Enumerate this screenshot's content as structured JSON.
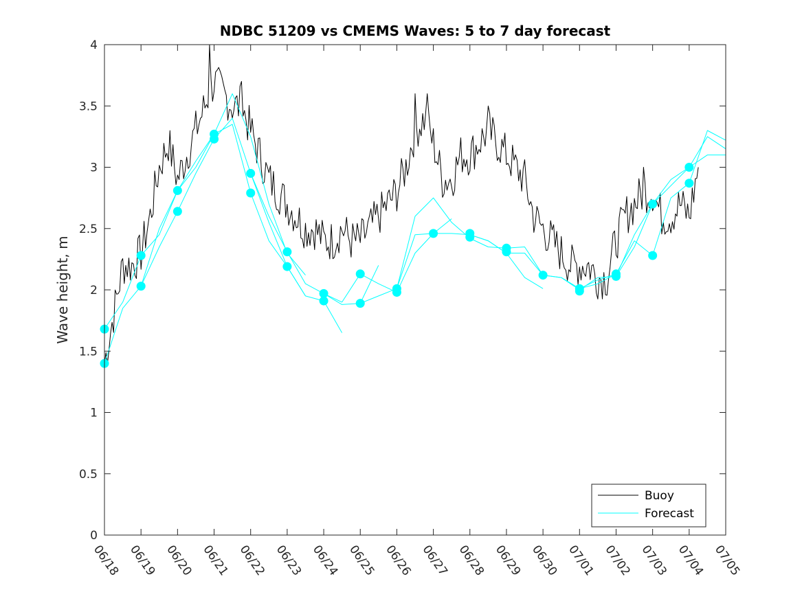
{
  "chart_data": {
    "type": "line",
    "title": "NDBC 51209 vs CMEMS Waves: 5 to 7 day forecast",
    "xlabel": "",
    "ylabel": "Wave height, m",
    "ylim": [
      0,
      4
    ],
    "yticks": [
      "0",
      "0.5",
      "1",
      "1.5",
      "2",
      "2.5",
      "3",
      "3.5",
      "4"
    ],
    "xlim": [
      "06/18",
      "07/05"
    ],
    "xticks": [
      "06/18",
      "06/19",
      "06/20",
      "06/21",
      "06/22",
      "06/23",
      "06/24",
      "06/25",
      "06/26",
      "06/27",
      "06/28",
      "06/29",
      "06/30",
      "07/01",
      "07/02",
      "07/03",
      "07/04",
      "07/05"
    ],
    "grid": false,
    "legend_position": "bottom-right",
    "colors": {
      "buoy": "#000000",
      "forecast": "#00ffff"
    },
    "series": [
      {
        "name": "Buoy",
        "x": [
          "06/18 00:00",
          "06/18 06:00",
          "06/18 12:00",
          "06/18 18:00",
          "06/19 00:00",
          "06/19 06:00",
          "06/19 12:00",
          "06/19 18:00",
          "06/20 00:00",
          "06/20 06:00",
          "06/20 12:00",
          "06/20 18:00",
          "06/21 00:00",
          "06/21 06:00",
          "06/21 12:00",
          "06/21 18:00",
          "06/22 00:00",
          "06/22 06:00",
          "06/22 12:00",
          "06/22 18:00",
          "06/23 00:00",
          "06/23 06:00",
          "06/23 12:00",
          "06/23 18:00",
          "06/24 00:00",
          "06/24 06:00",
          "06/24 12:00",
          "06/24 18:00",
          "06/25 00:00",
          "06/25 06:00",
          "06/25 12:00",
          "06/25 18:00",
          "06/26 00:00",
          "06/26 06:00",
          "06/26 12:00",
          "06/26 18:00",
          "06/27 00:00",
          "06/27 06:00",
          "06/27 12:00",
          "06/27 18:00",
          "06/28 00:00",
          "06/28 06:00",
          "06/28 12:00",
          "06/28 18:00",
          "06/29 00:00",
          "06/29 06:00",
          "06/29 12:00",
          "06/29 18:00",
          "06/30 00:00",
          "06/30 06:00",
          "06/30 12:00",
          "06/30 18:00",
          "07/01 00:00",
          "07/01 06:00",
          "07/01 12:00",
          "07/01 18:00",
          "07/02 00:00",
          "07/02 06:00",
          "07/02 12:00",
          "07/02 18:00",
          "07/03 00:00",
          "07/03 06:00",
          "07/03 12:00",
          "07/03 18:00",
          "07/04 00:00",
          "07/04 06:00"
        ],
        "y": [
          1.4,
          1.8,
          2.2,
          2.2,
          2.3,
          2.6,
          3.0,
          3.2,
          2.9,
          3.1,
          3.3,
          3.5,
          3.7,
          3.6,
          3.5,
          3.5,
          3.3,
          3.1,
          2.9,
          2.8,
          2.7,
          2.6,
          2.5,
          2.5,
          2.4,
          2.4,
          2.5,
          2.4,
          2.4,
          2.5,
          2.6,
          2.7,
          2.8,
          3.0,
          3.3,
          3.4,
          3.2,
          2.9,
          2.9,
          3.1,
          3.1,
          3.2,
          3.3,
          3.2,
          3.1,
          3.0,
          2.9,
          2.6,
          2.5,
          2.4,
          2.3,
          2.2,
          2.2,
          2.2,
          2.1,
          2.1,
          2.4,
          2.6,
          2.7,
          2.8,
          2.8,
          2.6,
          2.6,
          2.7,
          2.6,
          3.0
        ],
        "ymax_spikes": [
          [
            "06/20 21:00",
            4.0
          ],
          [
            "06/21 18:00",
            3.7
          ],
          [
            "06/26 12:00",
            3.6
          ],
          [
            "06/26 20:00",
            3.6
          ],
          [
            "06/28 12:00",
            3.5
          ],
          [
            "07/02 18:00",
            3.0
          ]
        ]
      },
      {
        "name": "Forecast",
        "x": [
          "06/18",
          "06/18 12:00",
          "06/19",
          "06/19 12:00",
          "06/20",
          "06/20 12:00",
          "06/21",
          "06/21 12:00",
          "06/22",
          "06/22 12:00",
          "06/23",
          "06/23 12:00"
        ],
        "y": [
          1.68,
          1.9,
          2.28,
          2.45,
          2.81,
          3.0,
          3.27,
          3.6,
          3.25,
          2.7,
          2.3,
          2.12
        ]
      },
      {
        "name": "",
        "x": [
          "06/18",
          "06/18 12:00",
          "06/19",
          "06/19 12:00",
          "06/20",
          "06/20 12:00",
          "06/21",
          "06/21 12:00",
          "06/22",
          "06/22 12:00",
          "06/23",
          "06/23 12:00"
        ],
        "y": [
          1.4,
          1.85,
          2.03,
          2.35,
          2.64,
          2.95,
          3.23,
          3.4,
          2.95,
          2.55,
          2.19,
          1.95
        ]
      },
      {
        "name": "",
        "x": [
          "06/19",
          "06/19 12:00",
          "06/20",
          "06/20 12:00",
          "06/21",
          "06/21 12:00",
          "06/22",
          "06/22 12:00",
          "06/23",
          "06/23 12:00",
          "06/24",
          "06/24 12:00"
        ],
        "y": [
          2.03,
          2.5,
          2.81,
          3.05,
          3.27,
          3.35,
          2.79,
          2.4,
          2.19,
          1.95,
          1.91,
          1.65
        ]
      },
      {
        "name": "",
        "x": [
          "06/22",
          "06/22 12:00",
          "06/23",
          "06/23 12:00",
          "06/24",
          "06/24 12:00",
          "06/25",
          "06/25 12:00"
        ],
        "y": [
          2.95,
          2.6,
          2.31,
          2.05,
          1.97,
          1.88,
          1.89,
          2.2
        ]
      },
      {
        "name": "",
        "x": [
          "06/24",
          "06/24 12:00",
          "06/25",
          "06/25 12:00",
          "06/26",
          "06/26 12:00",
          "06/27",
          "06/27 12:00"
        ],
        "y": [
          1.97,
          1.9,
          2.13,
          2.05,
          1.98,
          2.3,
          2.46,
          2.58
        ]
      },
      {
        "name": "",
        "x": [
          "06/25",
          "06/25 12:00",
          "06/26",
          "06/26 12:00",
          "06/27",
          "06/27 12:00",
          "06/28",
          "06/28 12:00",
          "06/29",
          "06/29 12:00",
          "06/30"
        ],
        "y": [
          1.89,
          1.95,
          2.01,
          2.45,
          2.46,
          2.46,
          2.45,
          2.4,
          2.3,
          2.1,
          2.01
        ]
      },
      {
        "name": "",
        "x": [
          "06/26",
          "06/26 12:00",
          "06/27",
          "06/27 12:00",
          "06/28",
          "06/28 12:00",
          "06/29",
          "06/29 12:00",
          "06/30",
          "06/30 12:00",
          "07/01",
          "07/01 12:00",
          "07/02"
        ],
        "y": [
          2.01,
          2.6,
          2.75,
          2.55,
          2.42,
          2.35,
          2.34,
          2.35,
          2.12,
          2.1,
          2.01,
          2.05,
          2.13
        ]
      },
      {
        "name": "",
        "x": [
          "06/28",
          "06/28 12:00",
          "06/29",
          "06/29 12:00",
          "06/30",
          "06/30 12:00",
          "07/01",
          "07/01 12:00",
          "07/02",
          "07/02 12:00",
          "07/03",
          "07/03 12:00",
          "07/04",
          "07/04 12:00",
          "07/05"
        ],
        "y": [
          2.45,
          2.4,
          2.3,
          2.3,
          2.12,
          2.1,
          2.0,
          2.1,
          2.11,
          2.35,
          2.7,
          2.9,
          3.0,
          3.25,
          3.15
        ]
      },
      {
        "name": "",
        "x": [
          "07/01",
          "07/01 12:00",
          "07/02",
          "07/02 12:00",
          "07/03",
          "07/03 12:00",
          "07/04",
          "07/04 12:00",
          "07/05"
        ],
        "y": [
          2.01,
          2.08,
          2.13,
          2.4,
          2.28,
          2.75,
          2.87,
          3.3,
          3.22
        ]
      },
      {
        "name": "",
        "x": [
          "07/02",
          "07/02 12:00",
          "07/03",
          "07/03 12:00",
          "07/04",
          "07/04 12:00",
          "07/05"
        ],
        "y": [
          2.11,
          2.45,
          2.7,
          2.85,
          3.0,
          3.1,
          3.1
        ]
      }
    ],
    "forecast_markers": {
      "x": [
        "06/18",
        "06/18",
        "06/19",
        "06/19",
        "06/20",
        "06/20",
        "06/21",
        "06/21",
        "06/22",
        "06/22",
        "06/23",
        "06/23",
        "06/24",
        "06/24",
        "06/25",
        "06/25",
        "06/26",
        "06/26",
        "06/27",
        "06/28",
        "06/28",
        "06/29",
        "06/29",
        "06/30",
        "07/01",
        "07/01",
        "07/02",
        "07/02",
        "07/03",
        "07/03",
        "07/04",
        "07/04"
      ],
      "y": [
        1.68,
        1.4,
        2.28,
        2.03,
        2.81,
        2.64,
        3.27,
        3.23,
        2.95,
        2.79,
        2.31,
        2.19,
        1.97,
        1.91,
        2.13,
        1.89,
        2.01,
        1.98,
        2.46,
        2.46,
        2.43,
        2.34,
        2.31,
        2.12,
        2.01,
        1.99,
        2.13,
        2.11,
        2.7,
        2.28,
        3.0,
        2.87
      ]
    }
  }
}
